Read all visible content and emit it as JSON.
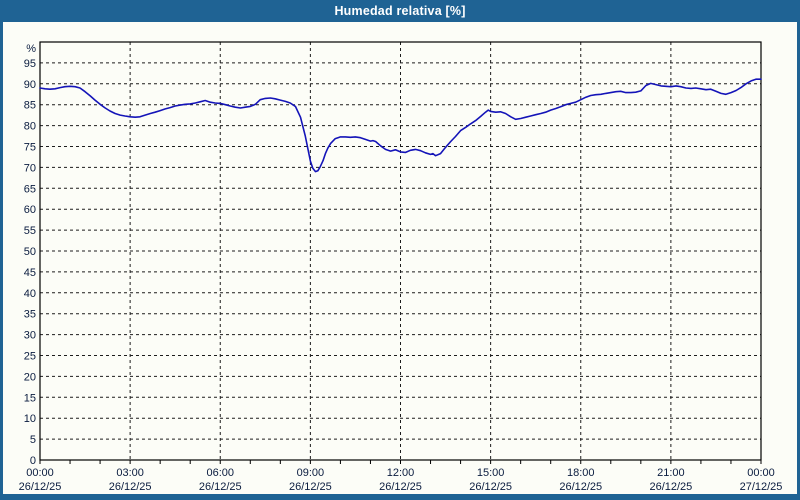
{
  "window": {
    "title": "Humedad relativa [%]"
  },
  "colors": {
    "titlebar": "#1f6394",
    "window_border": "#1f6394",
    "background": "#fcfdf7",
    "line": "#1414b8",
    "grid": "#1c1c1c",
    "label_text": "#0a1c3f",
    "title_text": "#ffffff"
  },
  "chart_data": {
    "type": "line",
    "title": "Humedad relativa [%]",
    "xlabel": "",
    "ylabel": "%",
    "y_unit_label": "%",
    "ylim": [
      0,
      100
    ],
    "xlim": [
      0,
      24
    ],
    "grid": true,
    "grid_step_y": 5,
    "grid_step_x": 3,
    "minor_tick_step_x": 1,
    "legend": "none",
    "y_tick_labels": [
      "95",
      "90",
      "85",
      "80",
      "75",
      "70",
      "65",
      "60",
      "55",
      "50",
      "45",
      "40",
      "35",
      "30",
      "25",
      "20",
      "15",
      "10",
      "5",
      "0"
    ],
    "x_tick_labels": [
      {
        "t": 0,
        "time": "00:00",
        "date": "26/12/25"
      },
      {
        "t": 3,
        "time": "03:00",
        "date": "26/12/25"
      },
      {
        "t": 6,
        "time": "06:00",
        "date": "26/12/25"
      },
      {
        "t": 9,
        "time": "09:00",
        "date": "26/12/25"
      },
      {
        "t": 12,
        "time": "12:00",
        "date": "26/12/25"
      },
      {
        "t": 15,
        "time": "15:00",
        "date": "26/12/25"
      },
      {
        "t": 18,
        "time": "18:00",
        "date": "26/12/25"
      },
      {
        "t": 21,
        "time": "21:00",
        "date": "26/12/25"
      },
      {
        "t": 24,
        "time": "00:00",
        "date": "27/12/25"
      }
    ],
    "series": [
      {
        "name": "Humedad relativa",
        "color": "#1414b8",
        "points": [
          [
            0.0,
            89.0
          ],
          [
            0.17,
            88.8
          ],
          [
            0.33,
            88.7
          ],
          [
            0.5,
            88.8
          ],
          [
            0.67,
            89.1
          ],
          [
            0.83,
            89.3
          ],
          [
            1.0,
            89.4
          ],
          [
            1.17,
            89.3
          ],
          [
            1.33,
            89.0
          ],
          [
            1.5,
            88.1
          ],
          [
            1.67,
            87.1
          ],
          [
            1.83,
            86.1
          ],
          [
            2.0,
            85.1
          ],
          [
            2.17,
            84.2
          ],
          [
            2.33,
            83.5
          ],
          [
            2.5,
            82.9
          ],
          [
            2.67,
            82.5
          ],
          [
            2.83,
            82.3
          ],
          [
            3.0,
            82.1
          ],
          [
            3.17,
            82.0
          ],
          [
            3.33,
            82.1
          ],
          [
            3.5,
            82.5
          ],
          [
            3.67,
            82.9
          ],
          [
            3.83,
            83.2
          ],
          [
            4.0,
            83.6
          ],
          [
            4.17,
            84.0
          ],
          [
            4.33,
            84.3
          ],
          [
            4.5,
            84.7
          ],
          [
            4.67,
            84.9
          ],
          [
            4.83,
            85.1
          ],
          [
            5.0,
            85.2
          ],
          [
            5.17,
            85.4
          ],
          [
            5.33,
            85.7
          ],
          [
            5.5,
            86.0
          ],
          [
            5.67,
            85.6
          ],
          [
            5.83,
            85.4
          ],
          [
            6.0,
            85.3
          ],
          [
            6.17,
            85.0
          ],
          [
            6.33,
            84.7
          ],
          [
            6.5,
            84.4
          ],
          [
            6.67,
            84.2
          ],
          [
            6.83,
            84.4
          ],
          [
            7.0,
            84.6
          ],
          [
            7.17,
            85.1
          ],
          [
            7.33,
            86.2
          ],
          [
            7.5,
            86.5
          ],
          [
            7.67,
            86.6
          ],
          [
            7.83,
            86.4
          ],
          [
            8.0,
            86.1
          ],
          [
            8.17,
            85.8
          ],
          [
            8.33,
            85.4
          ],
          [
            8.5,
            84.6
          ],
          [
            8.67,
            82.0
          ],
          [
            8.83,
            77.5
          ],
          [
            9.0,
            71.5
          ],
          [
            9.08,
            69.8
          ],
          [
            9.17,
            69.0
          ],
          [
            9.25,
            69.2
          ],
          [
            9.33,
            70.2
          ],
          [
            9.42,
            71.6
          ],
          [
            9.5,
            73.3
          ],
          [
            9.58,
            74.6
          ],
          [
            9.67,
            75.7
          ],
          [
            9.75,
            76.3
          ],
          [
            9.83,
            76.9
          ],
          [
            9.92,
            77.1
          ],
          [
            10.0,
            77.3
          ],
          [
            10.17,
            77.3
          ],
          [
            10.33,
            77.2
          ],
          [
            10.5,
            77.3
          ],
          [
            10.67,
            77.1
          ],
          [
            10.83,
            76.7
          ],
          [
            11.0,
            76.3
          ],
          [
            11.08,
            76.4
          ],
          [
            11.17,
            76.2
          ],
          [
            11.33,
            75.2
          ],
          [
            11.5,
            74.3
          ],
          [
            11.67,
            73.9
          ],
          [
            11.83,
            74.2
          ],
          [
            12.0,
            73.7
          ],
          [
            12.17,
            73.6
          ],
          [
            12.33,
            74.1
          ],
          [
            12.5,
            74.3
          ],
          [
            12.67,
            74.0
          ],
          [
            12.83,
            73.5
          ],
          [
            13.0,
            73.1
          ],
          [
            13.08,
            73.3
          ],
          [
            13.17,
            72.8
          ],
          [
            13.33,
            73.3
          ],
          [
            13.5,
            74.8
          ],
          [
            13.67,
            76.2
          ],
          [
            13.83,
            77.4
          ],
          [
            14.0,
            78.8
          ],
          [
            14.17,
            79.6
          ],
          [
            14.33,
            80.4
          ],
          [
            14.5,
            81.2
          ],
          [
            14.67,
            82.2
          ],
          [
            14.83,
            83.2
          ],
          [
            14.92,
            83.7
          ],
          [
            15.0,
            83.4
          ],
          [
            15.17,
            83.2
          ],
          [
            15.33,
            83.3
          ],
          [
            15.5,
            82.9
          ],
          [
            15.67,
            82.1
          ],
          [
            15.83,
            81.5
          ],
          [
            16.0,
            81.7
          ],
          [
            16.17,
            82.0
          ],
          [
            16.33,
            82.3
          ],
          [
            16.5,
            82.6
          ],
          [
            16.67,
            82.9
          ],
          [
            16.83,
            83.2
          ],
          [
            17.0,
            83.7
          ],
          [
            17.17,
            84.1
          ],
          [
            17.33,
            84.5
          ],
          [
            17.5,
            85.0
          ],
          [
            17.67,
            85.3
          ],
          [
            17.83,
            85.6
          ],
          [
            18.0,
            86.2
          ],
          [
            18.17,
            86.8
          ],
          [
            18.33,
            87.2
          ],
          [
            18.5,
            87.4
          ],
          [
            18.67,
            87.5
          ],
          [
            18.83,
            87.7
          ],
          [
            19.0,
            87.9
          ],
          [
            19.17,
            88.1
          ],
          [
            19.33,
            88.2
          ],
          [
            19.5,
            87.9
          ],
          [
            19.67,
            87.9
          ],
          [
            19.83,
            88.0
          ],
          [
            20.0,
            88.3
          ],
          [
            20.17,
            89.6
          ],
          [
            20.33,
            90.1
          ],
          [
            20.5,
            89.8
          ],
          [
            20.67,
            89.5
          ],
          [
            20.83,
            89.4
          ],
          [
            21.0,
            89.3
          ],
          [
            21.17,
            89.5
          ],
          [
            21.33,
            89.3
          ],
          [
            21.5,
            89.0
          ],
          [
            21.67,
            88.9
          ],
          [
            21.83,
            89.0
          ],
          [
            22.0,
            88.8
          ],
          [
            22.17,
            88.6
          ],
          [
            22.33,
            88.7
          ],
          [
            22.5,
            88.2
          ],
          [
            22.67,
            87.7
          ],
          [
            22.83,
            87.5
          ],
          [
            23.0,
            87.9
          ],
          [
            23.17,
            88.4
          ],
          [
            23.33,
            89.1
          ],
          [
            23.5,
            90.0
          ],
          [
            23.67,
            90.7
          ],
          [
            23.83,
            91.1
          ],
          [
            24.0,
            91.1
          ]
        ]
      }
    ]
  }
}
